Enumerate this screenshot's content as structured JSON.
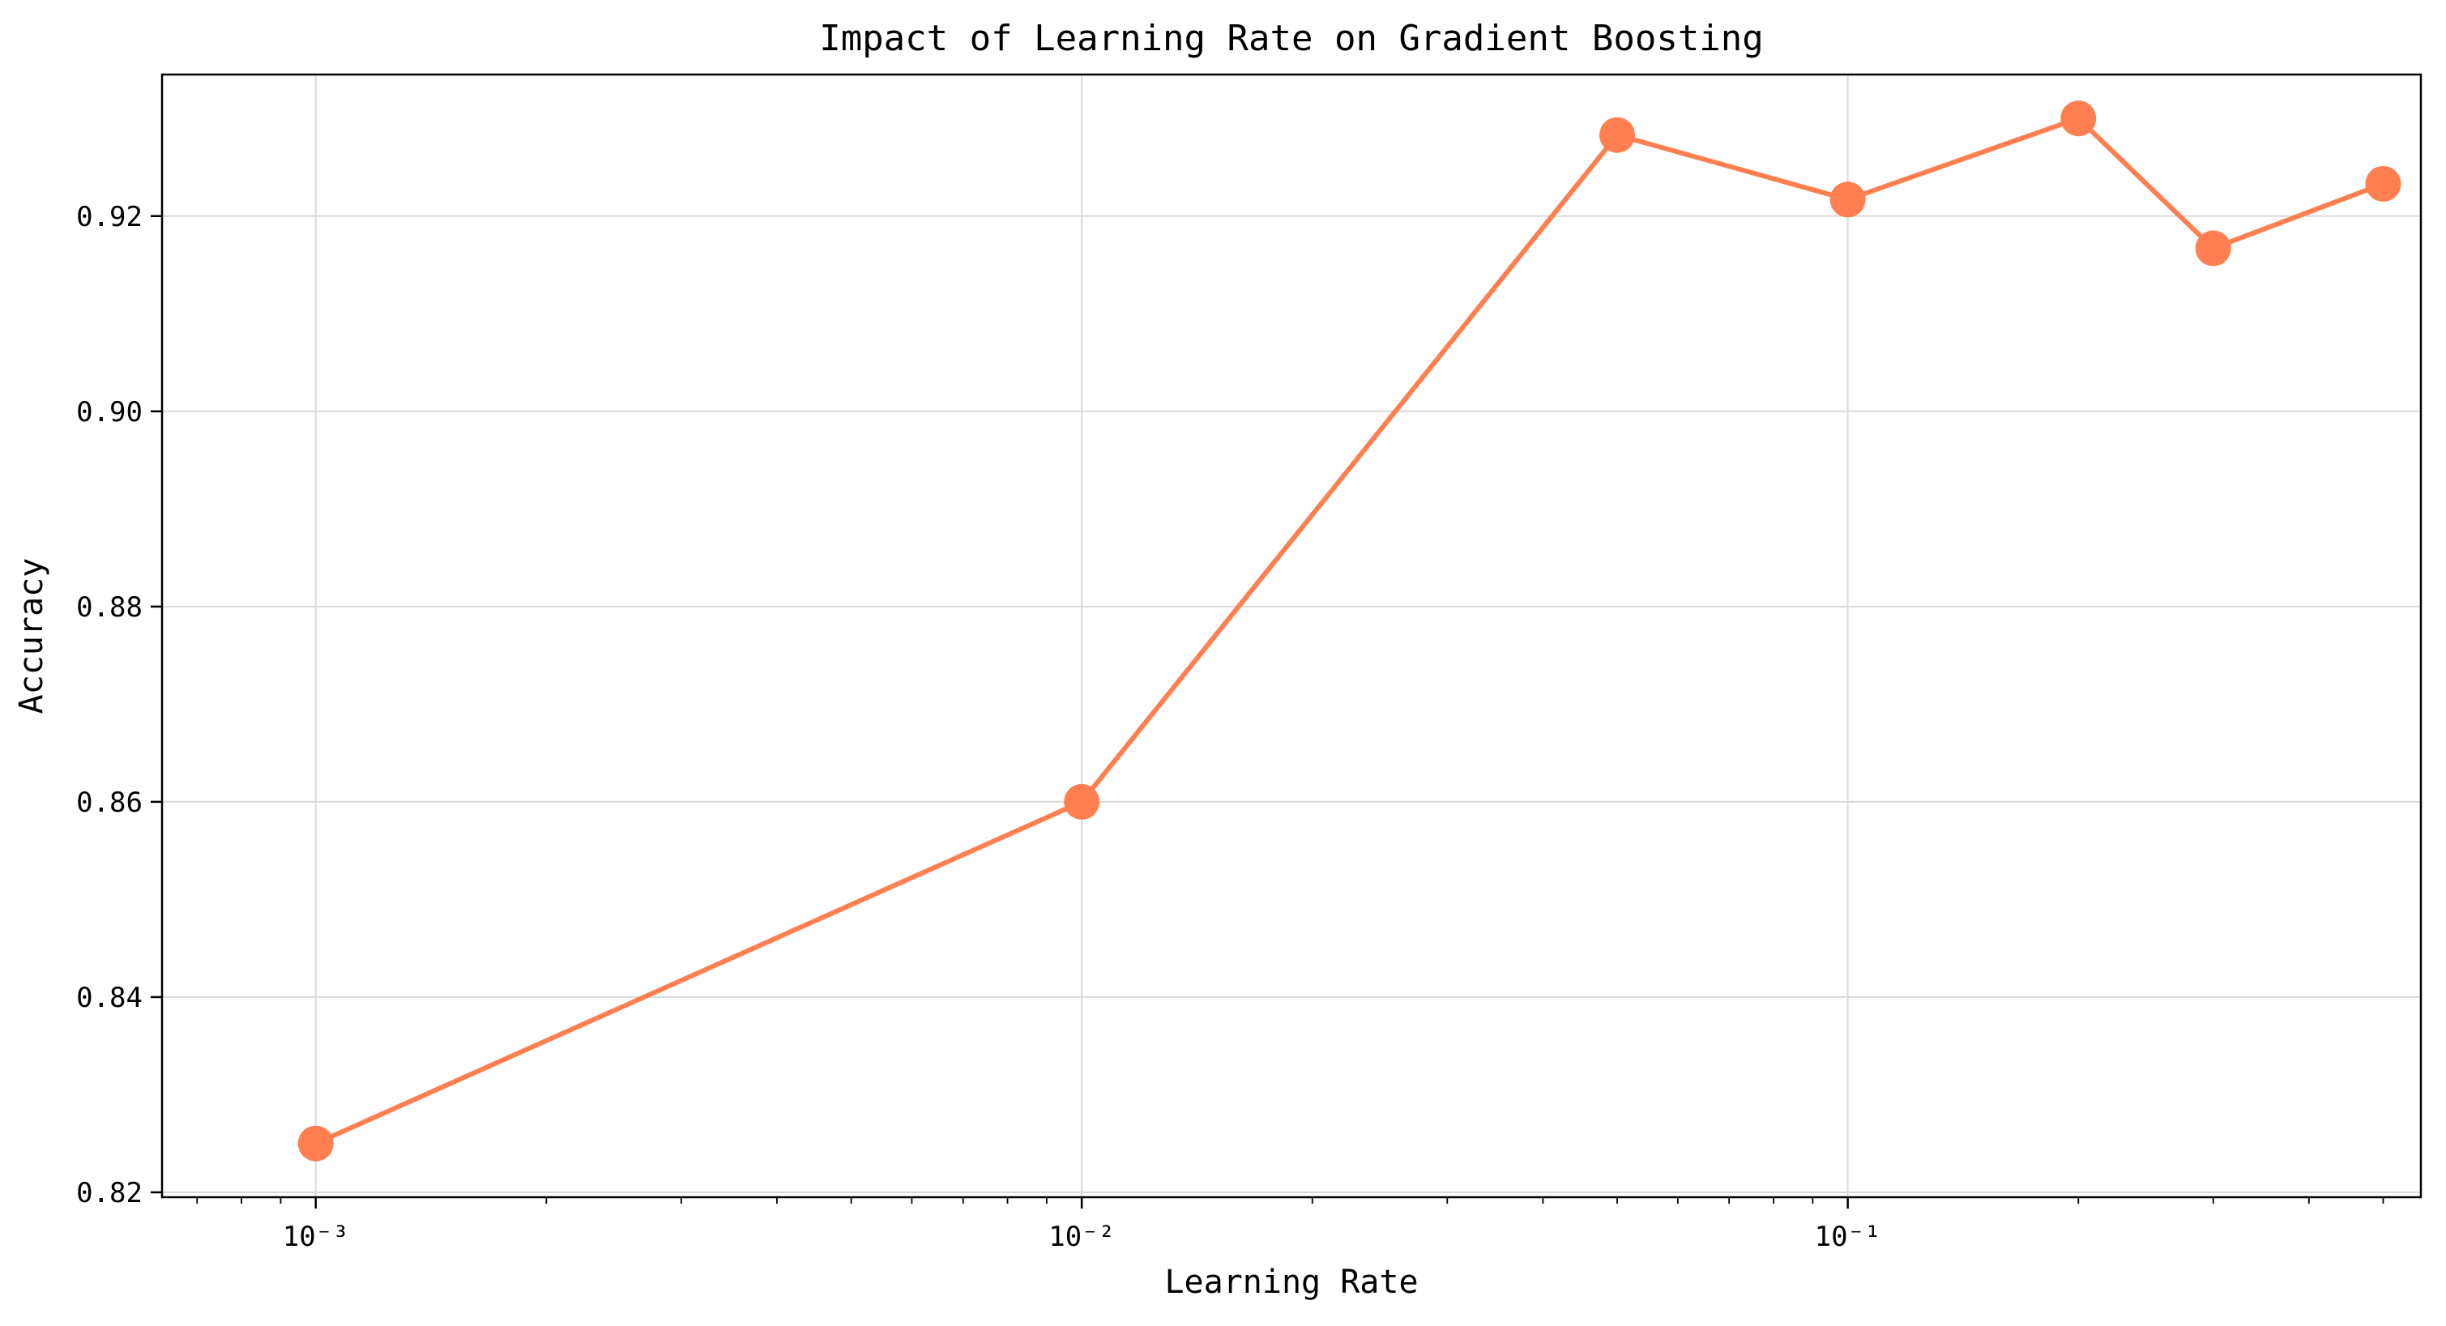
{
  "chart_data": {
    "type": "line",
    "title": "Impact of Learning Rate on Gradient Boosting",
    "xlabel": "Learning Rate",
    "ylabel": "Accuracy",
    "x_scale": "log",
    "xlim": [
      0.00063,
      0.56
    ],
    "ylim": [
      0.8195,
      0.9345
    ],
    "grid": true,
    "series": [
      {
        "color": "#FF7F50",
        "x": [
          0.001,
          0.01,
          0.05,
          0.1,
          0.2,
          0.3,
          0.5
        ],
        "y": [
          0.825,
          0.86,
          0.9283,
          0.9217,
          0.93,
          0.9167,
          0.9233
        ]
      }
    ],
    "x_ticks": [
      {
        "value": 0.001,
        "label": "10⁻³"
      },
      {
        "value": 0.01,
        "label": "10⁻²"
      },
      {
        "value": 0.1,
        "label": "10⁻¹"
      }
    ],
    "y_ticks": [
      {
        "value": 0.82,
        "label": "0.82"
      },
      {
        "value": 0.84,
        "label": "0.84"
      },
      {
        "value": 0.86,
        "label": "0.86"
      },
      {
        "value": 0.88,
        "label": "0.88"
      },
      {
        "value": 0.9,
        "label": "0.90"
      },
      {
        "value": 0.92,
        "label": "0.92"
      }
    ]
  }
}
